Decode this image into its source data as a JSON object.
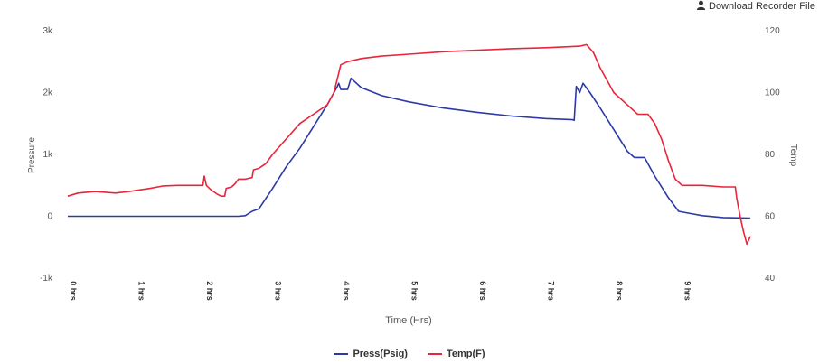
{
  "header": {
    "download_label": "Download Recorder File",
    "download_icon": "user-icon"
  },
  "colors": {
    "press": "#2b3aa6",
    "temp": "#e8253a",
    "axis_text": "#555555"
  },
  "chart_data": {
    "type": "line",
    "title": "",
    "xlabel": "Time (Hrs)",
    "ylabel_left": "Pressure",
    "ylabel_right": "Temp",
    "xlim": [
      0,
      10
    ],
    "x_ticks": [
      {
        "value": 0,
        "label": "0 hrs"
      },
      {
        "value": 1,
        "label": "1 hrs"
      },
      {
        "value": 2,
        "label": "2 hrs"
      },
      {
        "value": 3,
        "label": "3 hrs"
      },
      {
        "value": 4,
        "label": "4 hrs"
      },
      {
        "value": 5,
        "label": "5 hrs"
      },
      {
        "value": 6,
        "label": "6 hrs"
      },
      {
        "value": 7,
        "label": "7 hrs"
      },
      {
        "value": 8,
        "label": "8 hrs"
      },
      {
        "value": 9,
        "label": "9 hrs"
      }
    ],
    "y_left": {
      "lim": [
        -1000,
        3000
      ],
      "ticks": [
        {
          "value": 3000,
          "label": "3k"
        },
        {
          "value": 2000,
          "label": "2k"
        },
        {
          "value": 1000,
          "label": "1k"
        },
        {
          "value": 0,
          "label": "0"
        },
        {
          "value": -1000,
          "label": "-1k"
        }
      ]
    },
    "y_right": {
      "lim": [
        40,
        120
      ],
      "ticks": [
        {
          "value": 120,
          "label": "120"
        },
        {
          "value": 100,
          "label": "100"
        },
        {
          "value": 80,
          "label": "80"
        },
        {
          "value": 60,
          "label": "60"
        },
        {
          "value": 40,
          "label": "40"
        }
      ]
    },
    "grid": false,
    "legend_position": "bottom-center",
    "series": [
      {
        "name": "Press(Psig)",
        "axis": "left",
        "color": "#2b3aa6",
        "points": [
          [
            0,
            0
          ],
          [
            1,
            0
          ],
          [
            2,
            0
          ],
          [
            2.5,
            0
          ],
          [
            2.6,
            10
          ],
          [
            2.7,
            80
          ],
          [
            2.8,
            120
          ],
          [
            3.0,
            450
          ],
          [
            3.2,
            800
          ],
          [
            3.4,
            1100
          ],
          [
            3.6,
            1450
          ],
          [
            3.8,
            1800
          ],
          [
            3.95,
            2100
          ],
          [
            3.97,
            2150
          ],
          [
            4.0,
            2050
          ],
          [
            4.1,
            2050
          ],
          [
            4.15,
            2230
          ],
          [
            4.3,
            2080
          ],
          [
            4.6,
            1950
          ],
          [
            5.0,
            1850
          ],
          [
            5.5,
            1750
          ],
          [
            6.0,
            1680
          ],
          [
            6.5,
            1620
          ],
          [
            7.0,
            1580
          ],
          [
            7.4,
            1560
          ],
          [
            7.42,
            1550
          ],
          [
            7.45,
            2100
          ],
          [
            7.5,
            2000
          ],
          [
            7.55,
            2150
          ],
          [
            7.65,
            2000
          ],
          [
            7.8,
            1750
          ],
          [
            8.0,
            1400
          ],
          [
            8.2,
            1050
          ],
          [
            8.3,
            950
          ],
          [
            8.45,
            950
          ],
          [
            8.6,
            650
          ],
          [
            8.8,
            300
          ],
          [
            8.95,
            80
          ],
          [
            9.1,
            50
          ],
          [
            9.3,
            10
          ],
          [
            9.6,
            -20
          ],
          [
            10.0,
            -30
          ]
        ]
      },
      {
        "name": "Temp(F)",
        "axis": "right",
        "color": "#e8253a",
        "points": [
          [
            0,
            66.5
          ],
          [
            0.15,
            67.5
          ],
          [
            0.4,
            68
          ],
          [
            0.7,
            67.5
          ],
          [
            0.9,
            68
          ],
          [
            1.2,
            69
          ],
          [
            1.4,
            69.8
          ],
          [
            1.6,
            70
          ],
          [
            1.8,
            70
          ],
          [
            1.98,
            70
          ],
          [
            2.0,
            73
          ],
          [
            2.03,
            70
          ],
          [
            2.1,
            68.5
          ],
          [
            2.2,
            67
          ],
          [
            2.25,
            66.5
          ],
          [
            2.3,
            66.5
          ],
          [
            2.32,
            69
          ],
          [
            2.4,
            69.5
          ],
          [
            2.45,
            70.5
          ],
          [
            2.5,
            72
          ],
          [
            2.6,
            72
          ],
          [
            2.7,
            72.5
          ],
          [
            2.72,
            75
          ],
          [
            2.8,
            75.5
          ],
          [
            2.9,
            77
          ],
          [
            3.0,
            80
          ],
          [
            3.2,
            85
          ],
          [
            3.4,
            90
          ],
          [
            3.6,
            93
          ],
          [
            3.8,
            96
          ],
          [
            3.9,
            100
          ],
          [
            4.0,
            109
          ],
          [
            4.1,
            110
          ],
          [
            4.3,
            111
          ],
          [
            4.6,
            111.8
          ],
          [
            5.0,
            112.4
          ],
          [
            5.5,
            113.2
          ],
          [
            6.0,
            113.7
          ],
          [
            6.5,
            114.2
          ],
          [
            7.0,
            114.5
          ],
          [
            7.3,
            114.8
          ],
          [
            7.5,
            115
          ],
          [
            7.6,
            115.5
          ],
          [
            7.7,
            113
          ],
          [
            7.8,
            108
          ],
          [
            8.0,
            100
          ],
          [
            8.2,
            96
          ],
          [
            8.35,
            93
          ],
          [
            8.5,
            93
          ],
          [
            8.6,
            90
          ],
          [
            8.7,
            85
          ],
          [
            8.8,
            78
          ],
          [
            8.9,
            72
          ],
          [
            9.0,
            70
          ],
          [
            9.3,
            70
          ],
          [
            9.6,
            69.5
          ],
          [
            9.78,
            69.5
          ],
          [
            9.8,
            66
          ],
          [
            9.85,
            60
          ],
          [
            9.9,
            55
          ],
          [
            9.95,
            51
          ],
          [
            10.0,
            53.5
          ]
        ]
      }
    ]
  }
}
